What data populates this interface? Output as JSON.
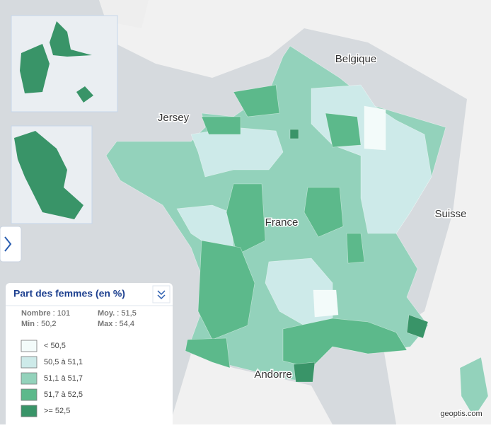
{
  "map": {
    "labels": [
      "Belgique",
      "Jersey",
      "France",
      "Suisse",
      "Andorre"
    ]
  },
  "legend": {
    "title": "Part des femmes (en %)",
    "stats": [
      {
        "label": "Nombre",
        "value": ": 101"
      },
      {
        "label": "Moy.",
        "value": ": 51,5"
      },
      {
        "label": "Min",
        "value": ": 50,2"
      },
      {
        "label": "Max",
        "value": ": 54,4"
      }
    ],
    "classes": [
      {
        "label": "< 50,5",
        "color": "#f3fbfa"
      },
      {
        "label": "50,5 à 51,1",
        "color": "#cdeae9"
      },
      {
        "label": "51,1 à 51,7",
        "color": "#93d2bb"
      },
      {
        "label": "51,7 à 52,5",
        "color": "#5cb98b"
      },
      {
        "label": ">= 52,5",
        "color": "#399468"
      }
    ]
  },
  "footer": "geoptis.com"
}
